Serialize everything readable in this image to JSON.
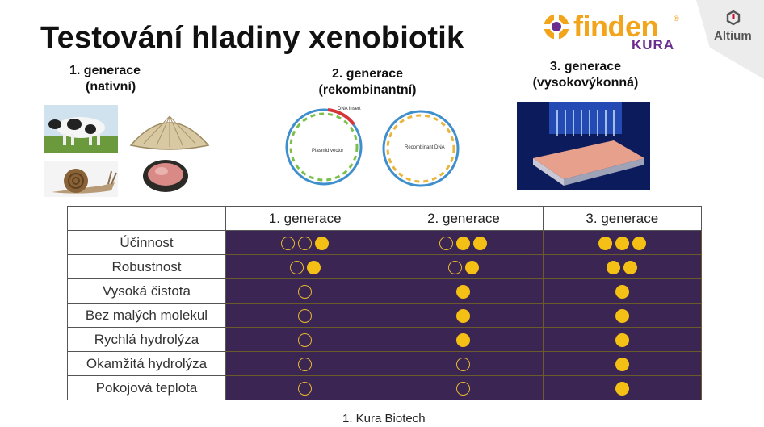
{
  "title": "Testování hladiny xenobiotik",
  "logo": {
    "brand": "finden",
    "sub": "KURA",
    "registered": "®"
  },
  "corner_badge": {
    "label": "Altium"
  },
  "generations": {
    "gen1": {
      "label": "1.  generace",
      "sub": "(nativní)"
    },
    "gen2": {
      "label": "2. generace",
      "sub": "(rekombinantní)"
    },
    "gen3": {
      "label": "3. generace",
      "sub": "(vysokovýkonná)"
    }
  },
  "plasmid_labels": {
    "dna_insert": "DNA insert",
    "plasmid_vector": "Plasmid vector",
    "recombinant_dna": "Recombinant DNA"
  },
  "table": {
    "headers": [
      "",
      "1. generace",
      "2. generace",
      "3. generace"
    ],
    "rows": [
      {
        "label": "Účinnost",
        "ratings": [
          [
            0,
            0,
            1
          ],
          [
            0,
            1,
            1
          ],
          [
            1,
            1,
            1
          ]
        ]
      },
      {
        "label": "Robustnost",
        "ratings": [
          [
            0,
            1
          ],
          [
            0,
            1
          ],
          [
            1,
            1
          ]
        ]
      },
      {
        "label": "Vysoká čistota",
        "ratings": [
          [
            0
          ],
          [
            1
          ],
          [
            1
          ]
        ]
      },
      {
        "label": "Bez malých molekul",
        "ratings": [
          [
            0
          ],
          [
            1
          ],
          [
            1
          ]
        ]
      },
      {
        "label": "Rychlá hydrolýza",
        "ratings": [
          [
            0
          ],
          [
            1
          ],
          [
            1
          ]
        ]
      },
      {
        "label": "Okamžitá hydrolýza",
        "ratings": [
          [
            0
          ],
          [
            0
          ],
          [
            1
          ]
        ]
      },
      {
        "label": "Pokojová teplota",
        "ratings": [
          [
            0
          ],
          [
            0
          ],
          [
            1
          ]
        ]
      }
    ]
  },
  "footnote": "1. Kura Biotech",
  "colors": {
    "cell_bg": "#3a2553",
    "dot_full": "#f5c015",
    "dot_empty_border": "#e8b830",
    "brand_orange": "#f2a51a",
    "brand_purple": "#6a2c8f"
  }
}
